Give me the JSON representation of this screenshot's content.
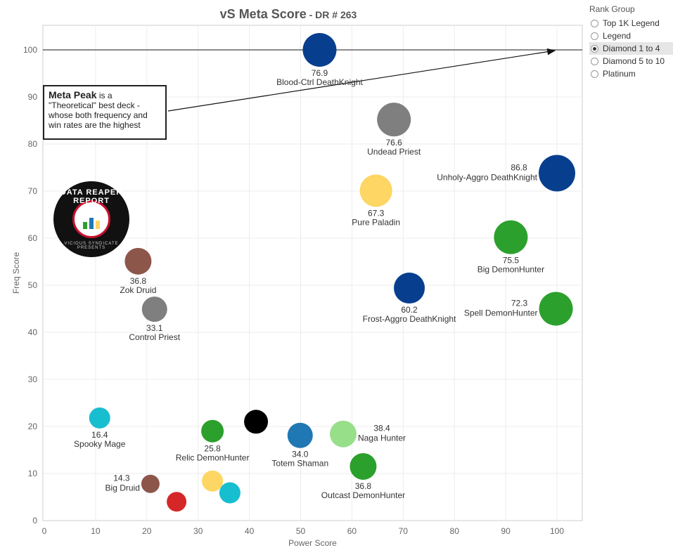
{
  "title": {
    "main": "vS Meta Score",
    "sub": " - DR # 263"
  },
  "legend": {
    "title": "Rank Group",
    "items": [
      {
        "label": "Top 1K Legend",
        "selected": false
      },
      {
        "label": "Legend",
        "selected": false
      },
      {
        "label": "Diamond 1 to 4",
        "selected": true
      },
      {
        "label": "Diamond 5 to 10",
        "selected": false
      },
      {
        "label": "Platinum",
        "selected": false
      }
    ]
  },
  "callout": {
    "bold": "Meta Peak",
    "text": " is a \"Theoretical\" best deck - whose both frequency and win rates are the highest"
  },
  "logo": {
    "top_text": "DATA REAPER REPORT",
    "bottom_text": "VICIOUS SYNDICATE PRESENTS"
  },
  "colors": {
    "dk_blue": "#073f8e",
    "grey": "#7f7f7f",
    "yellow": "#fdd663",
    "green": "#2ca02c",
    "brown": "#8c564b",
    "cyan": "#17becf",
    "red": "#d62728",
    "black": "#000000",
    "blue": "#1f77b4",
    "light_green": "#98df8a"
  },
  "chart_data": {
    "type": "scatter",
    "xlabel": "Power Score",
    "ylabel": "Freq Score",
    "xlim": [
      0,
      105
    ],
    "ylim": [
      -1,
      105
    ],
    "xticks": [
      0,
      10,
      20,
      30,
      40,
      50,
      60,
      70,
      80,
      90,
      100
    ],
    "yticks": [
      0,
      10,
      20,
      30,
      40,
      50,
      60,
      70,
      80,
      90,
      100
    ],
    "grid": true,
    "reference_line": {
      "y": 100
    },
    "annotation_arrow": {
      "to": [
        100,
        100
      ]
    },
    "points": [
      {
        "name": "Blood-Ctrl DeathKnight",
        "score": "76.9",
        "x": 53.7,
        "y": 100,
        "color": "#073f8e",
        "size": 24,
        "label": "below"
      },
      {
        "name": "Undead Priest",
        "score": "76.6",
        "x": 68.2,
        "y": 85.2,
        "color": "#7f7f7f",
        "size": 24,
        "label": "below"
      },
      {
        "name": "Unholy-Aggro DeathKnight",
        "score": "86.8",
        "x": 100,
        "y": 73.8,
        "color": "#073f8e",
        "size": 26,
        "label": "left"
      },
      {
        "name": "Pure Paladin",
        "score": "67.3",
        "x": 64.7,
        "y": 70.1,
        "color": "#fdd663",
        "size": 23,
        "label": "below"
      },
      {
        "name": "Big DemonHunter",
        "score": "75.5",
        "x": 91,
        "y": 60.2,
        "color": "#2ca02c",
        "size": 24,
        "label": "below"
      },
      {
        "name": "Frost-Aggro DeathKnight",
        "score": "60.2",
        "x": 71.2,
        "y": 49.4,
        "color": "#073f8e",
        "size": 22,
        "label": "below"
      },
      {
        "name": "Spell DemonHunter",
        "score": "72.3",
        "x": 99.8,
        "y": 45,
        "color": "#2ca02c",
        "size": 24,
        "label": "left"
      },
      {
        "name": "Zok Druid",
        "score": "36.8",
        "x": 18.3,
        "y": 55.1,
        "color": "#8c564b",
        "size": 19,
        "label": "below"
      },
      {
        "name": "Control Priest",
        "score": "33.1",
        "x": 21.5,
        "y": 44.9,
        "color": "#7f7f7f",
        "size": 18,
        "label": "below"
      },
      {
        "name": "Spooky Mage",
        "score": "16.4",
        "x": 10.8,
        "y": 21.8,
        "color": "#17becf",
        "size": 15,
        "label": "below"
      },
      {
        "name": "Relic DemonHunter",
        "score": "25.8",
        "x": 32.8,
        "y": 19,
        "color": "#2ca02c",
        "size": 16,
        "label": "below"
      },
      {
        "name": "",
        "score": "",
        "x": 41.3,
        "y": 21,
        "color": "#000000",
        "size": 17,
        "label": "none"
      },
      {
        "name": "Totem Shaman",
        "score": "34.0",
        "x": 49.9,
        "y": 18.1,
        "color": "#1f77b4",
        "size": 18,
        "label": "below"
      },
      {
        "name": "Naga Hunter",
        "score": "38.4",
        "x": 58.3,
        "y": 18.4,
        "color": "#98df8a",
        "size": 19,
        "label": "right"
      },
      {
        "name": "Outcast DemonHunter",
        "score": "36.8",
        "x": 62.2,
        "y": 11.5,
        "color": "#2ca02c",
        "size": 19,
        "label": "below"
      },
      {
        "name": "Big Druid",
        "score": "14.3",
        "x": 20.7,
        "y": 7.8,
        "color": "#8c564b",
        "size": 13,
        "label": "left"
      },
      {
        "name": "",
        "score": "",
        "x": 25.8,
        "y": 4,
        "color": "#d62728",
        "size": 14,
        "label": "none"
      },
      {
        "name": "",
        "score": "",
        "x": 32.8,
        "y": 8.4,
        "color": "#fdd663",
        "size": 15,
        "label": "none"
      },
      {
        "name": "",
        "score": "",
        "x": 36.2,
        "y": 5.9,
        "color": "#17becf",
        "size": 15,
        "label": "none"
      }
    ]
  }
}
